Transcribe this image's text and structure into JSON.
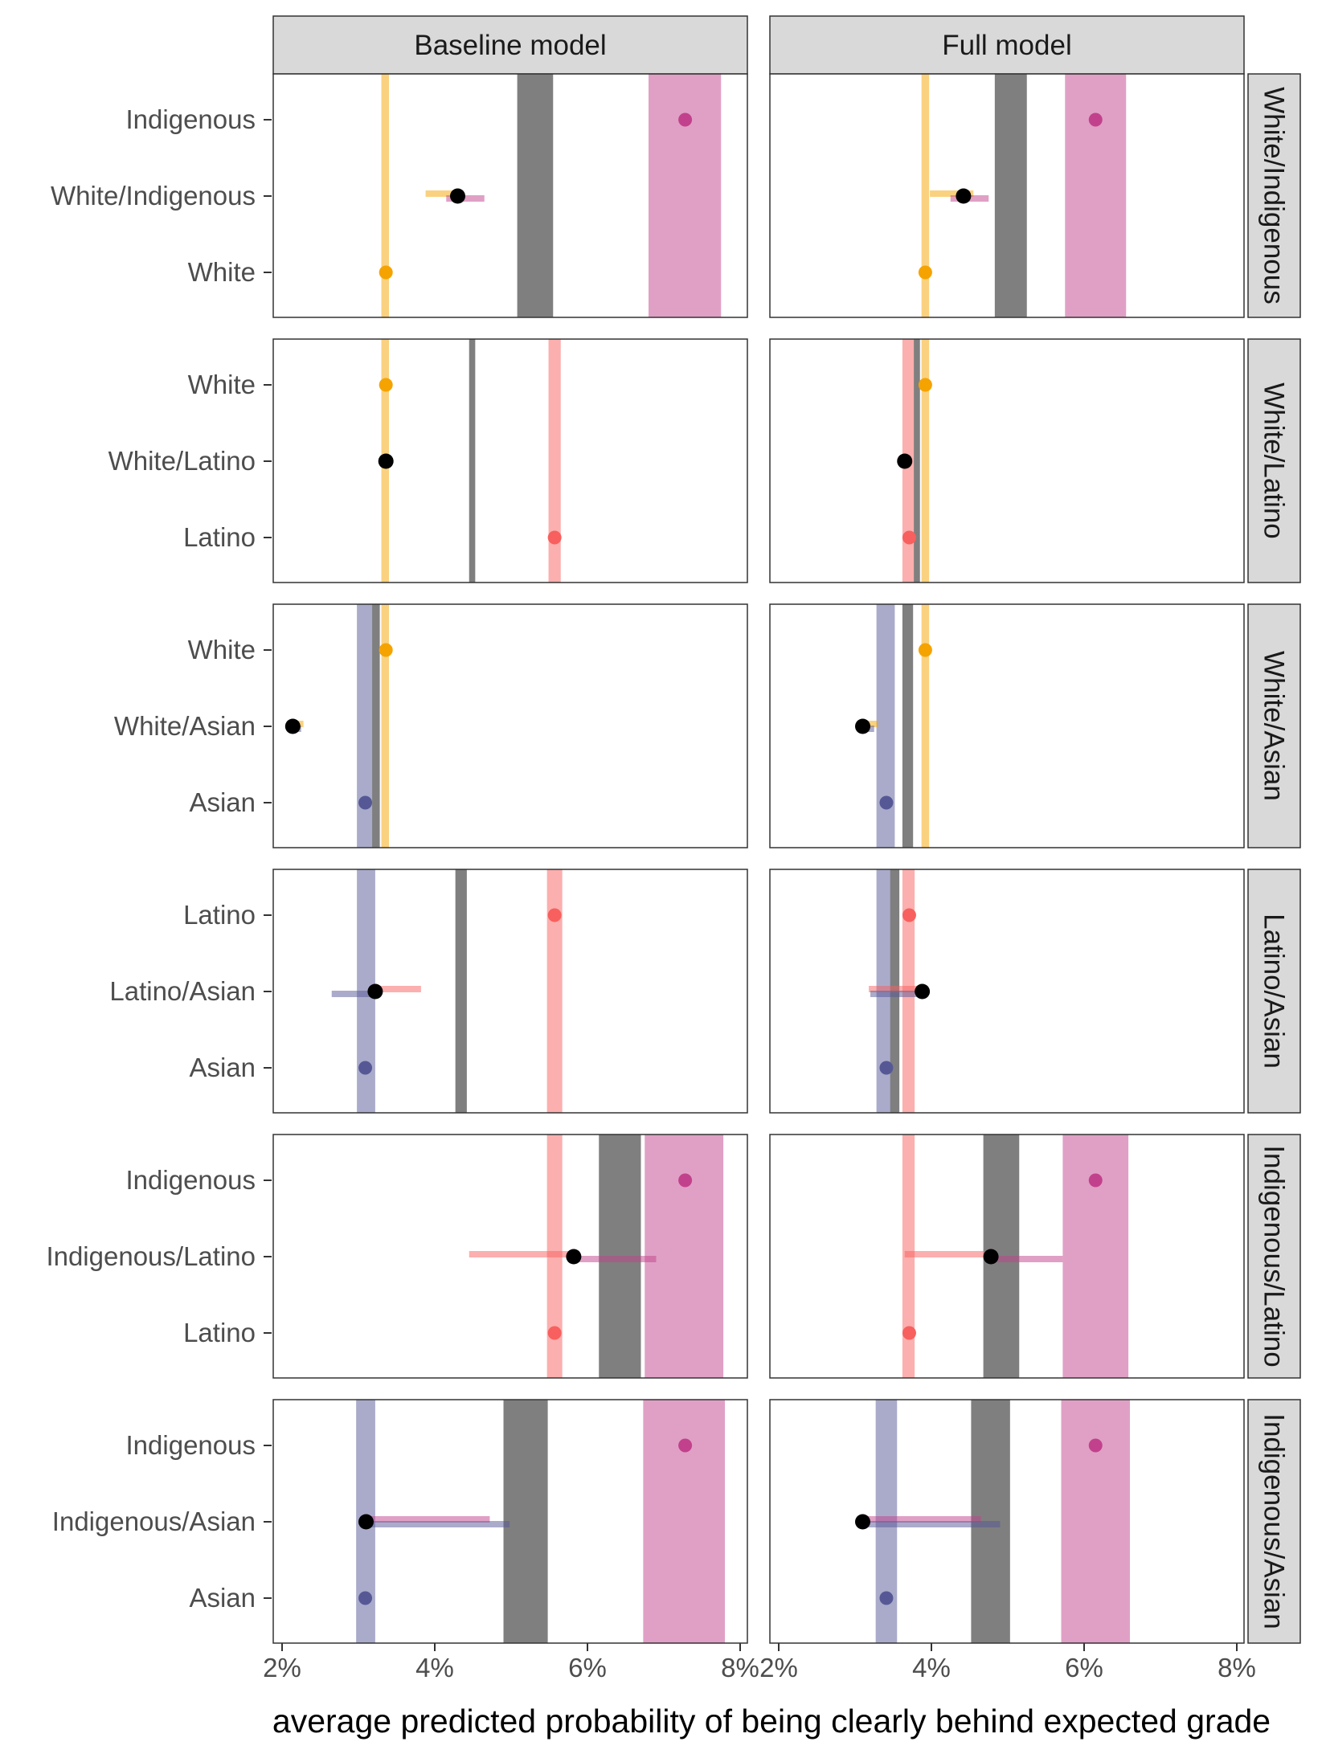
{
  "chart_data": {
    "type": "dot-interval-faceted",
    "xlabel": "average predicted probability of being clearly behind expected grade",
    "xlim": [
      2,
      8
    ],
    "x_ticks": [
      2,
      4,
      6,
      8
    ],
    "x_tick_labels": [
      "2%",
      "4%",
      "6%",
      "8%"
    ],
    "columns": [
      "Baseline model",
      "Full model"
    ],
    "group_colors": {
      "White": "#f5a300",
      "Indigenous": "#c2418c",
      "Latino": "#f7605e",
      "Asian": "#565896",
      "Multiracial": "#000000"
    },
    "band_color": "#7f7f7f",
    "rows": [
      {
        "label": "White/Indigenous",
        "categories": [
          "Indigenous",
          "White/Indigenous",
          "White"
        ],
        "panels": [
          {
            "bands": [
              {
                "group": "White",
                "lo": 3.3,
                "hi": 3.4
              },
              {
                "group": "Multiracial",
                "lo": 5.08,
                "hi": 5.55
              },
              {
                "group": "Indigenous",
                "lo": 6.8,
                "hi": 7.75
              }
            ],
            "single_points": [
              {
                "category": "Indigenous",
                "group": "Indigenous",
                "value": 7.28
              },
              {
                "category": "White",
                "group": "White",
                "value": 3.36
              }
            ],
            "multi_point": {
              "category": "White/Indigenous",
              "value": 4.3
            },
            "multi_ranges": [
              {
                "group": "White",
                "lo": 3.88,
                "hi": 4.35
              },
              {
                "group": "Indigenous",
                "lo": 4.15,
                "hi": 4.65
              }
            ]
          },
          {
            "bands": [
              {
                "group": "White",
                "lo": 3.87,
                "hi": 3.97
              },
              {
                "group": "Multiracial",
                "lo": 4.83,
                "hi": 5.25
              },
              {
                "group": "Indigenous",
                "lo": 5.75,
                "hi": 6.55
              }
            ],
            "single_points": [
              {
                "category": "Indigenous",
                "group": "Indigenous",
                "value": 6.15
              },
              {
                "category": "White",
                "group": "White",
                "value": 3.92
              }
            ],
            "multi_point": {
              "category": "White/Indigenous",
              "value": 4.42
            },
            "multi_ranges": [
              {
                "group": "White",
                "lo": 3.98,
                "hi": 4.55
              },
              {
                "group": "Indigenous",
                "lo": 4.25,
                "hi": 4.75
              }
            ]
          }
        ]
      },
      {
        "label": "White/Latino",
        "categories": [
          "White",
          "White/Latino",
          "Latino"
        ],
        "panels": [
          {
            "bands": [
              {
                "group": "White",
                "lo": 3.3,
                "hi": 3.4
              },
              {
                "group": "Multiracial",
                "lo": 4.45,
                "hi": 4.53
              },
              {
                "group": "Latino",
                "lo": 5.49,
                "hi": 5.65
              }
            ],
            "single_points": [
              {
                "category": "White",
                "group": "White",
                "value": 3.36
              },
              {
                "category": "Latino",
                "group": "Latino",
                "value": 5.57
              }
            ],
            "multi_point": {
              "category": "White/Latino",
              "value": 3.36
            },
            "multi_ranges": []
          },
          {
            "bands": [
              {
                "group": "Latino",
                "lo": 3.62,
                "hi": 3.78
              },
              {
                "group": "Multiracial",
                "lo": 3.77,
                "hi": 3.85
              },
              {
                "group": "White",
                "lo": 3.87,
                "hi": 3.97
              }
            ],
            "single_points": [
              {
                "category": "White",
                "group": "White",
                "value": 3.92
              },
              {
                "category": "Latino",
                "group": "Latino",
                "value": 3.71
              }
            ],
            "multi_point": {
              "category": "White/Latino",
              "value": 3.65
            },
            "multi_ranges": []
          }
        ]
      },
      {
        "label": "White/Asian",
        "categories": [
          "White",
          "White/Asian",
          "Asian"
        ],
        "panels": [
          {
            "bands": [
              {
                "group": "Asian",
                "lo": 2.98,
                "hi": 3.2
              },
              {
                "group": "Multiracial",
                "lo": 3.18,
                "hi": 3.28
              },
              {
                "group": "White",
                "lo": 3.3,
                "hi": 3.4
              }
            ],
            "single_points": [
              {
                "category": "White",
                "group": "White",
                "value": 3.36
              },
              {
                "category": "Asian",
                "group": "Asian",
                "value": 3.09
              }
            ],
            "multi_point": {
              "category": "White/Asian",
              "value": 2.14
            },
            "multi_ranges": [
              {
                "group": "White",
                "lo": 2.15,
                "hi": 2.28
              },
              {
                "group": "Asian",
                "lo": 2.15,
                "hi": 2.25
              }
            ]
          },
          {
            "bands": [
              {
                "group": "Asian",
                "lo": 3.28,
                "hi": 3.52
              },
              {
                "group": "Multiracial",
                "lo": 3.62,
                "hi": 3.76
              },
              {
                "group": "White",
                "lo": 3.87,
                "hi": 3.97
              }
            ],
            "single_points": [
              {
                "category": "White",
                "group": "White",
                "value": 3.92
              },
              {
                "category": "Asian",
                "group": "Asian",
                "value": 3.41
              }
            ],
            "multi_point": {
              "category": "White/Asian",
              "value": 3.1
            },
            "multi_ranges": [
              {
                "group": "White",
                "lo": 3.1,
                "hi": 3.3
              },
              {
                "group": "Asian",
                "lo": 3.1,
                "hi": 3.25
              }
            ]
          }
        ]
      },
      {
        "label": "Latino/Asian",
        "categories": [
          "Latino",
          "Latino/Asian",
          "Asian"
        ],
        "panels": [
          {
            "bands": [
              {
                "group": "Asian",
                "lo": 2.98,
                "hi": 3.22
              },
              {
                "group": "Multiracial",
                "lo": 4.27,
                "hi": 4.42
              },
              {
                "group": "Latino",
                "lo": 5.47,
                "hi": 5.67
              }
            ],
            "single_points": [
              {
                "category": "Latino",
                "group": "Latino",
                "value": 5.57
              },
              {
                "category": "Asian",
                "group": "Asian",
                "value": 3.09
              }
            ],
            "multi_point": {
              "category": "Latino/Asian",
              "value": 3.22
            },
            "multi_ranges": [
              {
                "group": "Latino",
                "lo": 3.22,
                "hi": 3.82
              },
              {
                "group": "Asian",
                "lo": 2.65,
                "hi": 3.22
              }
            ]
          },
          {
            "bands": [
              {
                "group": "Asian",
                "lo": 3.28,
                "hi": 3.52
              },
              {
                "group": "Multiracial",
                "lo": 3.46,
                "hi": 3.58
              },
              {
                "group": "Latino",
                "lo": 3.62,
                "hi": 3.78
              }
            ],
            "single_points": [
              {
                "category": "Latino",
                "group": "Latino",
                "value": 3.71
              },
              {
                "category": "Asian",
                "group": "Asian",
                "value": 3.41
              }
            ],
            "multi_point": {
              "category": "Latino/Asian",
              "value": 3.88
            },
            "multi_ranges": [
              {
                "group": "Latino",
                "lo": 3.18,
                "hi": 3.88
              },
              {
                "group": "Asian",
                "lo": 3.2,
                "hi": 3.88
              }
            ]
          }
        ]
      },
      {
        "label": "Indigenous/Latino",
        "categories": [
          "Indigenous",
          "Indigenous/Latino",
          "Latino"
        ],
        "panels": [
          {
            "bands": [
              {
                "group": "Latino",
                "lo": 5.47,
                "hi": 5.67
              },
              {
                "group": "Multiracial",
                "lo": 6.15,
                "hi": 6.7
              },
              {
                "group": "Indigenous",
                "lo": 6.75,
                "hi": 7.78
              }
            ],
            "single_points": [
              {
                "category": "Indigenous",
                "group": "Indigenous",
                "value": 7.28
              },
              {
                "category": "Latino",
                "group": "Latino",
                "value": 5.57
              }
            ],
            "multi_point": {
              "category": "Indigenous/Latino",
              "value": 5.82
            },
            "multi_ranges": [
              {
                "group": "Latino",
                "lo": 4.45,
                "hi": 5.82
              },
              {
                "group": "Indigenous",
                "lo": 5.82,
                "hi": 6.9
              }
            ]
          },
          {
            "bands": [
              {
                "group": "Latino",
                "lo": 3.62,
                "hi": 3.78
              },
              {
                "group": "Multiracial",
                "lo": 4.68,
                "hi": 5.15
              },
              {
                "group": "Indigenous",
                "lo": 5.72,
                "hi": 6.58
              }
            ],
            "single_points": [
              {
                "category": "Indigenous",
                "group": "Indigenous",
                "value": 6.15
              },
              {
                "category": "Latino",
                "group": "Latino",
                "value": 3.71
              }
            ],
            "multi_point": {
              "category": "Indigenous/Latino",
              "value": 4.78
            },
            "multi_ranges": [
              {
                "group": "Latino",
                "lo": 3.65,
                "hi": 4.78
              },
              {
                "group": "Indigenous",
                "lo": 4.78,
                "hi": 5.72
              }
            ]
          }
        ]
      },
      {
        "label": "Indigenous/Asian",
        "categories": [
          "Indigenous",
          "Indigenous/Asian",
          "Asian"
        ],
        "panels": [
          {
            "bands": [
              {
                "group": "Asian",
                "lo": 2.97,
                "hi": 3.22
              },
              {
                "group": "Multiracial",
                "lo": 4.9,
                "hi": 5.48
              },
              {
                "group": "Indigenous",
                "lo": 6.73,
                "hi": 7.8
              }
            ],
            "single_points": [
              {
                "category": "Indigenous",
                "group": "Indigenous",
                "value": 7.28
              },
              {
                "category": "Asian",
                "group": "Asian",
                "value": 3.09
              }
            ],
            "multi_point": {
              "category": "Indigenous/Asian",
              "value": 3.1
            },
            "multi_ranges": [
              {
                "group": "Indigenous",
                "lo": 3.1,
                "hi": 4.72
              },
              {
                "group": "Asian",
                "lo": 3.1,
                "hi": 4.98
              }
            ]
          },
          {
            "bands": [
              {
                "group": "Asian",
                "lo": 3.27,
                "hi": 3.55
              },
              {
                "group": "Multiracial",
                "lo": 4.52,
                "hi": 5.03
              },
              {
                "group": "Indigenous",
                "lo": 5.7,
                "hi": 6.6
              }
            ],
            "single_points": [
              {
                "category": "Indigenous",
                "group": "Indigenous",
                "value": 6.15
              },
              {
                "category": "Asian",
                "group": "Asian",
                "value": 3.41
              }
            ],
            "multi_point": {
              "category": "Indigenous/Asian",
              "value": 3.1
            },
            "multi_ranges": [
              {
                "group": "Indigenous",
                "lo": 3.1,
                "hi": 4.65
              },
              {
                "group": "Asian",
                "lo": 3.1,
                "hi": 4.9
              }
            ]
          }
        ]
      }
    ]
  }
}
